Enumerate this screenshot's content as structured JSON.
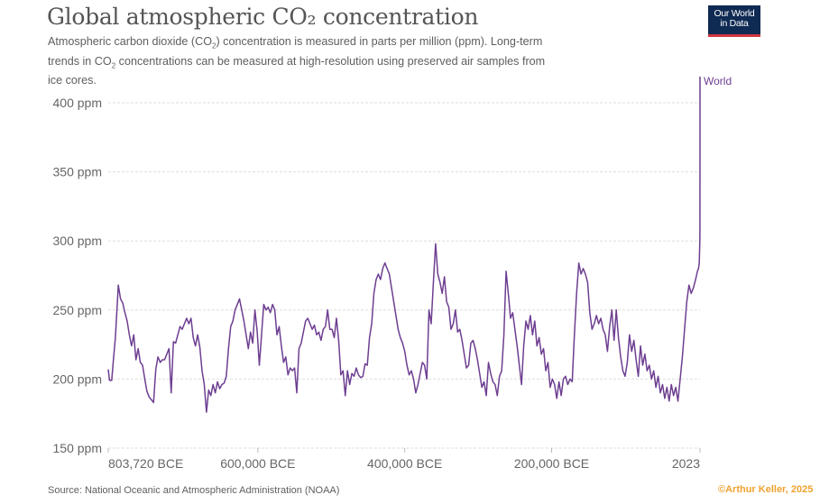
{
  "header": {
    "title": "Global atmospheric CO₂ concentration",
    "subtitle_parts": [
      "Atmospheric carbon dioxide (CO",
      "2",
      ") concentration is measured in parts per million (ppm). Long-term trends in CO",
      "2",
      " concentrations can be measured at high-resolution using preserved air samples from ice cores."
    ]
  },
  "logo": {
    "line1": "Our World",
    "line2": "in Data",
    "bg_color": "#0f2a53",
    "accent_color": "#d2353f"
  },
  "footer": {
    "source": "Source: National Oceanic and Atmospheric Administration (NOAA)",
    "credit": "©Arthur Keller, 2025"
  },
  "chart_data": {
    "type": "line",
    "title": "Global atmospheric CO₂ concentration",
    "xlabel": "",
    "ylabel": "",
    "ylim": [
      150,
      420
    ],
    "xlim": [
      -803720,
      2023
    ],
    "grid": true,
    "y_ticks": [
      {
        "value": 150,
        "label": "150 ppm"
      },
      {
        "value": 200,
        "label": "200 ppm"
      },
      {
        "value": 250,
        "label": "250 ppm"
      },
      {
        "value": 300,
        "label": "300 ppm"
      },
      {
        "value": 350,
        "label": "350 ppm"
      },
      {
        "value": 400,
        "label": "400 ppm"
      }
    ],
    "x_ticks": [
      {
        "value": -803720,
        "label": "803,720 BCE"
      },
      {
        "value": -600000,
        "label": "600,000 BCE"
      },
      {
        "value": -400000,
        "label": "400,000 BCE"
      },
      {
        "value": -200000,
        "label": "200,000 BCE"
      },
      {
        "value": 2023,
        "label": "2023"
      }
    ],
    "series": [
      {
        "name": "World",
        "color": "#6d3e91",
        "label_position": "end-right",
        "points": [
          [
            -803720,
            207
          ],
          [
            -802000,
            199
          ],
          [
            -799000,
            199
          ],
          [
            -797000,
            212
          ],
          [
            -794000,
            230
          ],
          [
            -790000,
            268
          ],
          [
            -787000,
            258
          ],
          [
            -784000,
            255
          ],
          [
            -781000,
            248
          ],
          [
            -778000,
            242
          ],
          [
            -775000,
            232
          ],
          [
            -772000,
            224
          ],
          [
            -769000,
            232
          ],
          [
            -766000,
            214
          ],
          [
            -763000,
            222
          ],
          [
            -760000,
            212
          ],
          [
            -757000,
            210
          ],
          [
            -754000,
            200
          ],
          [
            -751000,
            191
          ],
          [
            -748000,
            187
          ],
          [
            -745000,
            185
          ],
          [
            -742000,
            183
          ],
          [
            -739000,
            207
          ],
          [
            -736000,
            216
          ],
          [
            -733000,
            212
          ],
          [
            -730000,
            214
          ],
          [
            -727000,
            214
          ],
          [
            -724000,
            218
          ],
          [
            -721000,
            222
          ],
          [
            -718000,
            190
          ],
          [
            -715000,
            227
          ],
          [
            -712000,
            226
          ],
          [
            -709000,
            232
          ],
          [
            -706000,
            238
          ],
          [
            -703000,
            236
          ],
          [
            -700000,
            240
          ],
          [
            -697000,
            244
          ],
          [
            -694000,
            240
          ],
          [
            -691000,
            244
          ],
          [
            -688000,
            230
          ],
          [
            -685000,
            224
          ],
          [
            -682000,
            232
          ],
          [
            -679000,
            223
          ],
          [
            -676000,
            206
          ],
          [
            -673000,
            196
          ],
          [
            -670000,
            176
          ],
          [
            -667000,
            192
          ],
          [
            -664000,
            188
          ],
          [
            -661000,
            196
          ],
          [
            -658000,
            190
          ],
          [
            -655000,
            198
          ],
          [
            -652000,
            193
          ],
          [
            -649000,
            196
          ],
          [
            -646000,
            197
          ],
          [
            -643000,
            202
          ],
          [
            -640000,
            222
          ],
          [
            -637000,
            238
          ],
          [
            -634000,
            242
          ],
          [
            -631000,
            250
          ],
          [
            -628000,
            254
          ],
          [
            -625000,
            258
          ],
          [
            -622000,
            250
          ],
          [
            -619000,
            242
          ],
          [
            -616000,
            232
          ],
          [
            -613000,
            222
          ],
          [
            -610000,
            234
          ],
          [
            -607000,
            226
          ],
          [
            -604000,
            250
          ],
          [
            -601000,
            235
          ],
          [
            -598000,
            210
          ],
          [
            -595000,
            232
          ],
          [
            -592000,
            254
          ],
          [
            -589000,
            250
          ],
          [
            -586000,
            252
          ],
          [
            -583000,
            248
          ],
          [
            -580000,
            254
          ],
          [
            -577000,
            250
          ],
          [
            -574000,
            232
          ],
          [
            -571000,
            238
          ],
          [
            -568000,
            224
          ],
          [
            -565000,
            212
          ],
          [
            -562000,
            216
          ],
          [
            -559000,
            203
          ],
          [
            -556000,
            208
          ],
          [
            -553000,
            206
          ],
          [
            -550000,
            208
          ],
          [
            -547000,
            190
          ],
          [
            -544000,
            222
          ],
          [
            -541000,
            226
          ],
          [
            -538000,
            234
          ],
          [
            -535000,
            242
          ],
          [
            -532000,
            244
          ],
          [
            -529000,
            240
          ],
          [
            -526000,
            236
          ],
          [
            -523000,
            239
          ],
          [
            -520000,
            232
          ],
          [
            -517000,
            234
          ],
          [
            -514000,
            228
          ],
          [
            -511000,
            236
          ],
          [
            -508000,
            238
          ],
          [
            -505000,
            250
          ],
          [
            -502000,
            236
          ],
          [
            -499000,
            236
          ],
          [
            -496000,
            230
          ],
          [
            -493000,
            244
          ],
          [
            -490000,
            228
          ],
          [
            -487000,
            203
          ],
          [
            -484000,
            206
          ],
          [
            -481000,
            188
          ],
          [
            -478000,
            206
          ],
          [
            -475000,
            196
          ],
          [
            -472000,
            204
          ],
          [
            -469000,
            202
          ],
          [
            -466000,
            208
          ],
          [
            -463000,
            203
          ],
          [
            -460000,
            201
          ],
          [
            -457000,
            202
          ],
          [
            -454000,
            211
          ],
          [
            -451000,
            210
          ],
          [
            -448000,
            230
          ],
          [
            -445000,
            240
          ],
          [
            -442000,
            262
          ],
          [
            -439000,
            272
          ],
          [
            -436000,
            276
          ],
          [
            -433000,
            272
          ],
          [
            -430000,
            280
          ],
          [
            -427000,
            284
          ],
          [
            -424000,
            280
          ],
          [
            -421000,
            276
          ],
          [
            -418000,
            266
          ],
          [
            -415000,
            256
          ],
          [
            -412000,
            246
          ],
          [
            -409000,
            236
          ],
          [
            -406000,
            230
          ],
          [
            -403000,
            226
          ],
          [
            -400000,
            220
          ],
          [
            -397000,
            210
          ],
          [
            -394000,
            203
          ],
          [
            -391000,
            206
          ],
          [
            -388000,
            200
          ],
          [
            -385000,
            190
          ],
          [
            -382000,
            196
          ],
          [
            -379000,
            204
          ],
          [
            -376000,
            212
          ],
          [
            -373000,
            210
          ],
          [
            -370000,
            200
          ],
          [
            -367000,
            250
          ],
          [
            -364000,
            240
          ],
          [
            -361000,
            270
          ],
          [
            -358000,
            298
          ],
          [
            -355000,
            276
          ],
          [
            -352000,
            270
          ],
          [
            -349000,
            262
          ],
          [
            -346000,
            274
          ],
          [
            -343000,
            256
          ],
          [
            -340000,
            252
          ],
          [
            -337000,
            236
          ],
          [
            -334000,
            240
          ],
          [
            -331000,
            250
          ],
          [
            -328000,
            234
          ],
          [
            -325000,
            236
          ],
          [
            -322000,
            228
          ],
          [
            -319000,
            218
          ],
          [
            -316000,
            208
          ],
          [
            -313000,
            210
          ],
          [
            -310000,
            226
          ],
          [
            -307000,
            228
          ],
          [
            -304000,
            222
          ],
          [
            -301000,
            214
          ],
          [
            -298000,
            204
          ],
          [
            -295000,
            194
          ],
          [
            -292000,
            198
          ],
          [
            -289000,
            188
          ],
          [
            -286000,
            212
          ],
          [
            -283000,
            204
          ],
          [
            -280000,
            198
          ],
          [
            -277000,
            196
          ],
          [
            -274000,
            188
          ],
          [
            -271000,
            202
          ],
          [
            -268000,
            206
          ],
          [
            -265000,
            232
          ],
          [
            -262000,
            278
          ],
          [
            -259000,
            262
          ],
          [
            -256000,
            244
          ],
          [
            -253000,
            248
          ],
          [
            -250000,
            236
          ],
          [
            -247000,
            224
          ],
          [
            -244000,
            210
          ],
          [
            -241000,
            196
          ],
          [
            -238000,
            224
          ],
          [
            -235000,
            242
          ],
          [
            -232000,
            236
          ],
          [
            -229000,
            246
          ],
          [
            -226000,
            232
          ],
          [
            -223000,
            242
          ],
          [
            -220000,
            224
          ],
          [
            -217000,
            230
          ],
          [
            -214000,
            218
          ],
          [
            -211000,
            222
          ],
          [
            -208000,
            206
          ],
          [
            -205000,
            212
          ],
          [
            -202000,
            194
          ],
          [
            -199000,
            200
          ],
          [
            -196000,
            196
          ],
          [
            -193000,
            186
          ],
          [
            -190000,
            198
          ],
          [
            -187000,
            188
          ],
          [
            -184000,
            200
          ],
          [
            -181000,
            202
          ],
          [
            -178000,
            196
          ],
          [
            -175000,
            200
          ],
          [
            -172000,
            198
          ],
          [
            -169000,
            232
          ],
          [
            -166000,
            262
          ],
          [
            -163000,
            284
          ],
          [
            -160000,
            276
          ],
          [
            -157000,
            280
          ],
          [
            -154000,
            276
          ],
          [
            -151000,
            270
          ],
          [
            -148000,
            248
          ],
          [
            -145000,
            236
          ],
          [
            -142000,
            240
          ],
          [
            -139000,
            246
          ],
          [
            -136000,
            240
          ],
          [
            -133000,
            244
          ],
          [
            -130000,
            236
          ],
          [
            -127000,
            232
          ],
          [
            -124000,
            220
          ],
          [
            -121000,
            238
          ],
          [
            -118000,
            250
          ],
          [
            -115000,
            228
          ],
          [
            -112000,
            250
          ],
          [
            -109000,
            230
          ],
          [
            -106000,
            216
          ],
          [
            -103000,
            206
          ],
          [
            -100000,
            202
          ],
          [
            -97000,
            212
          ],
          [
            -94000,
            232
          ],
          [
            -91000,
            220
          ],
          [
            -88000,
            228
          ],
          [
            -85000,
            214
          ],
          [
            -82000,
            202
          ],
          [
            -79000,
            224
          ],
          [
            -76000,
            210
          ],
          [
            -73000,
            218
          ],
          [
            -70000,
            206
          ],
          [
            -67000,
            210
          ],
          [
            -64000,
            200
          ],
          [
            -61000,
            206
          ],
          [
            -58000,
            194
          ],
          [
            -55000,
            202
          ],
          [
            -52000,
            190
          ],
          [
            -49000,
            196
          ],
          [
            -46000,
            186
          ],
          [
            -43000,
            194
          ],
          [
            -40000,
            184
          ],
          [
            -37000,
            196
          ],
          [
            -34000,
            188
          ],
          [
            -31000,
            194
          ],
          [
            -28000,
            184
          ],
          [
            -25000,
            200
          ],
          [
            -22000,
            216
          ],
          [
            -19000,
            236
          ],
          [
            -16000,
            256
          ],
          [
            -13000,
            268
          ],
          [
            -10000,
            262
          ],
          [
            -7000,
            266
          ],
          [
            -4000,
            272
          ],
          [
            -1500,
            278
          ],
          [
            0,
            280
          ],
          [
            1000,
            284
          ],
          [
            1800,
            300
          ],
          [
            1950,
            310
          ],
          [
            1990,
            354
          ],
          [
            2023,
            419
          ]
        ]
      }
    ]
  }
}
